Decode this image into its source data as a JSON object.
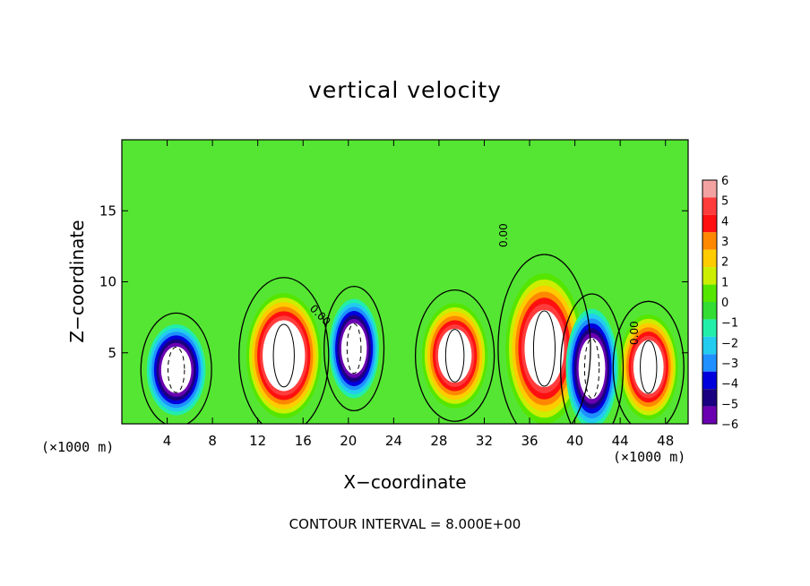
{
  "chart_data": {
    "type": "heatmap",
    "title": "vertical velocity",
    "xlabel": "X−coordinate",
    "ylabel": "Z−coordinate",
    "x_unit_left": "(×1000 m)",
    "x_unit_right": "(×1000 m)",
    "footer": "CONTOUR INTERVAL = 8.000E+00",
    "contour_label": "0.00",
    "xlim": [
      0,
      50
    ],
    "ylim": [
      0,
      20
    ],
    "x_ticks": [
      4,
      8,
      12,
      16,
      20,
      24,
      28,
      32,
      36,
      40,
      44,
      48
    ],
    "y_ticks": [
      5,
      10,
      15
    ],
    "colorbar": {
      "ticks": [
        6,
        5,
        4,
        3,
        2,
        1,
        0,
        -1,
        -2,
        -3,
        -4,
        -5,
        -6
      ],
      "colors": [
        "#f3a2a2",
        "#ff3c3c",
        "#ff1010",
        "#ff8800",
        "#ffcc00",
        "#ccee00",
        "#55e600",
        "#33dd33",
        "#22eeaa",
        "#22ccee",
        "#1e90ff",
        "#0000dd",
        "#1a0080",
        "#6a00b0"
      ]
    },
    "background_color": "#55e633",
    "cells": [
      {
        "x": 4.8,
        "z": 3.8,
        "value": -7.0,
        "rx": 2.6,
        "rz": 3.2
      },
      {
        "x": 14.3,
        "z": 4.8,
        "value": 7.5,
        "rx": 3.3,
        "rz": 4.4
      },
      {
        "x": 20.5,
        "z": 5.3,
        "value": -6.5,
        "rx": 2.2,
        "rz": 3.5
      },
      {
        "x": 29.4,
        "z": 4.8,
        "value": 6.5,
        "rx": 2.9,
        "rz": 3.7
      },
      {
        "x": 37.3,
        "z": 5.3,
        "value": 7.0,
        "rx": 3.4,
        "rz": 5.3
      },
      {
        "x": 41.5,
        "z": 3.9,
        "value": -6.5,
        "rx": 2.3,
        "rz": 4.2
      },
      {
        "x": 46.5,
        "z": 4.0,
        "value": 7.0,
        "rx": 2.6,
        "rz": 3.7
      }
    ]
  }
}
